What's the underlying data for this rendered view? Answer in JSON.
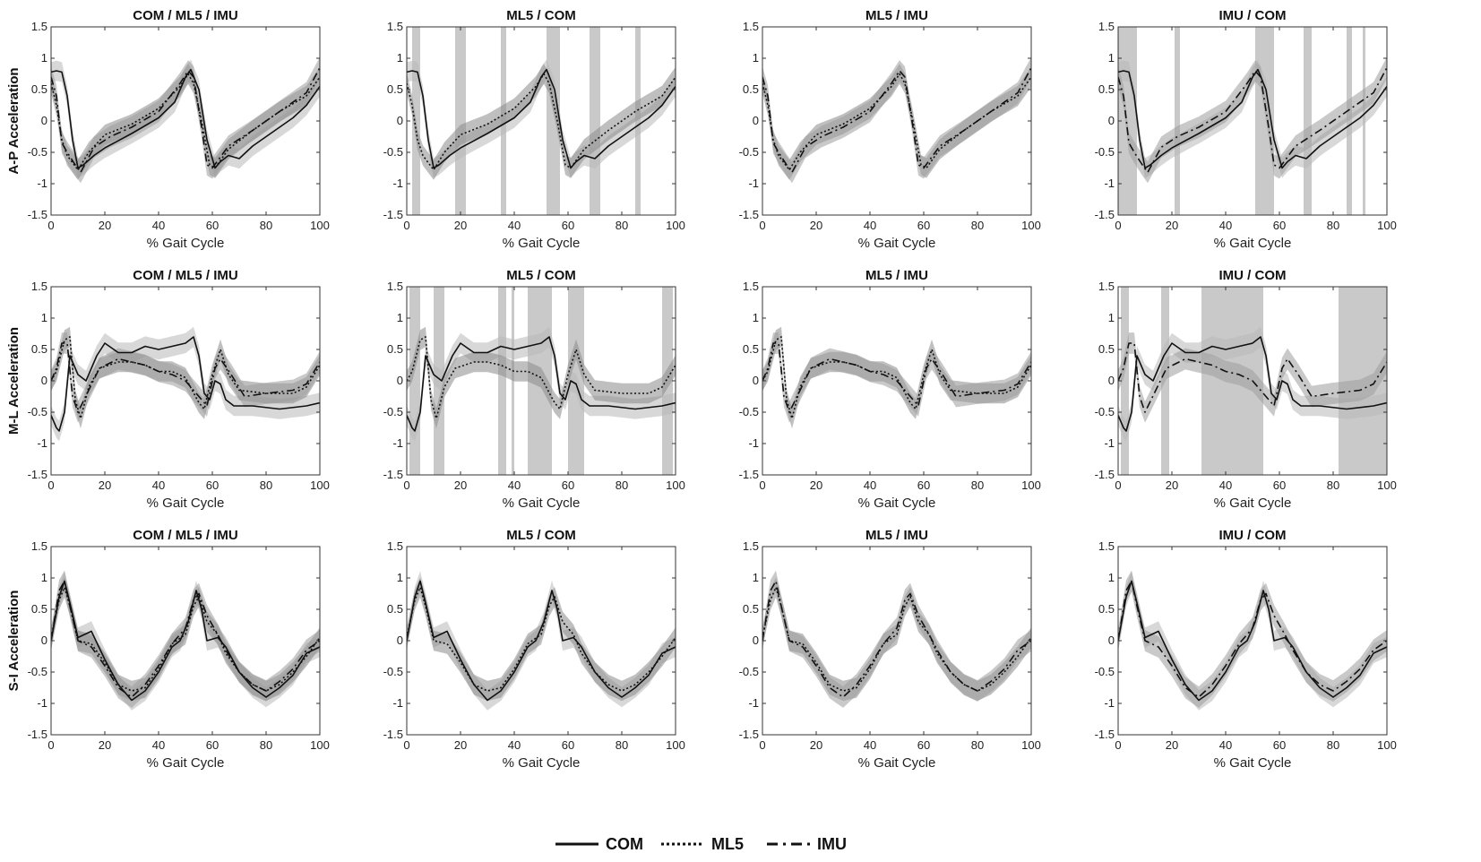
{
  "chart_data": {
    "type": "line",
    "description_grid": "3 rows x 4 columns of small multiples",
    "x_label": "% Gait Cycle",
    "xlim": [
      0,
      100
    ],
    "ylim": [
      -1.5,
      1.5
    ],
    "x_ticks": [
      "0",
      "20",
      "40",
      "60",
      "80",
      "100"
    ],
    "y_ticks": [
      "1.5",
      "1",
      "0.5",
      "0",
      "-0.5",
      "-1",
      "-1.5"
    ],
    "legend": [
      {
        "name": "COM",
        "style": "solid"
      },
      {
        "name": "ML5",
        "style": "dotted"
      },
      {
        "name": "IMU",
        "style": "dashdot"
      }
    ],
    "band_colors": {
      "COM": "#b8b8b8",
      "ML5": "#8a8a8a",
      "IMU": "#9c9c9c",
      "sig": "#c9c9c9"
    },
    "rows": [
      {
        "ylabel": "A-P Acceleration",
        "COM": [
          [
            0,
            0.78
          ],
          [
            2,
            0.8
          ],
          [
            4,
            0.78
          ],
          [
            6,
            0.4
          ],
          [
            8,
            -0.3
          ],
          [
            10,
            -0.75
          ],
          [
            12,
            -0.7
          ],
          [
            16,
            -0.55
          ],
          [
            20,
            -0.43
          ],
          [
            30,
            -0.2
          ],
          [
            40,
            0.05
          ],
          [
            46,
            0.3
          ],
          [
            50,
            0.7
          ],
          [
            52,
            0.82
          ],
          [
            55,
            0.5
          ],
          [
            58,
            -0.3
          ],
          [
            61,
            -0.75
          ],
          [
            63,
            -0.65
          ],
          [
            66,
            -0.55
          ],
          [
            70,
            -0.6
          ],
          [
            75,
            -0.4
          ],
          [
            80,
            -0.25
          ],
          [
            90,
            0.05
          ],
          [
            95,
            0.25
          ],
          [
            100,
            0.55
          ]
        ],
        "ML5": [
          [
            0,
            0.6
          ],
          [
            2,
            0.25
          ],
          [
            4,
            -0.3
          ],
          [
            6,
            -0.55
          ],
          [
            10,
            -0.78
          ],
          [
            14,
            -0.5
          ],
          [
            20,
            -0.22
          ],
          [
            30,
            -0.05
          ],
          [
            40,
            0.2
          ],
          [
            48,
            0.55
          ],
          [
            51,
            0.75
          ],
          [
            53,
            0.6
          ],
          [
            56,
            0.0
          ],
          [
            59,
            -0.7
          ],
          [
            61,
            -0.75
          ],
          [
            66,
            -0.45
          ],
          [
            75,
            -0.15
          ],
          [
            85,
            0.15
          ],
          [
            95,
            0.4
          ],
          [
            100,
            0.7
          ]
        ],
        "IMU": [
          [
            0,
            0.7
          ],
          [
            2,
            0.4
          ],
          [
            4,
            -0.35
          ],
          [
            6,
            -0.5
          ],
          [
            9,
            -0.7
          ],
          [
            11,
            -0.82
          ],
          [
            16,
            -0.42
          ],
          [
            22,
            -0.25
          ],
          [
            30,
            -0.1
          ],
          [
            40,
            0.15
          ],
          [
            48,
            0.6
          ],
          [
            51,
            0.8
          ],
          [
            53,
            0.7
          ],
          [
            56,
            -0.1
          ],
          [
            58,
            -0.7
          ],
          [
            60,
            -0.75
          ],
          [
            66,
            -0.4
          ],
          [
            75,
            -0.15
          ],
          [
            85,
            0.15
          ],
          [
            95,
            0.45
          ],
          [
            100,
            0.85
          ]
        ],
        "panels": [
          {
            "title": "COM / ML5 / IMU",
            "lines": [
              "COM",
              "ML5",
              "IMU"
            ],
            "sig": []
          },
          {
            "title": "ML5 / COM",
            "lines": [
              "COM",
              "ML5"
            ],
            "sig": [
              [
                2,
                5
              ],
              [
                18,
                22
              ],
              [
                35,
                37
              ],
              [
                52,
                57
              ],
              [
                68,
                72
              ],
              [
                85,
                87
              ]
            ]
          },
          {
            "title": "ML5 / IMU",
            "lines": [
              "ML5",
              "IMU"
            ],
            "sig": []
          },
          {
            "title": "IMU / COM",
            "lines": [
              "COM",
              "IMU"
            ],
            "sig": [
              [
                0,
                7
              ],
              [
                21,
                23
              ],
              [
                51,
                58
              ],
              [
                69,
                72
              ],
              [
                85,
                87
              ],
              [
                91,
                92
              ]
            ]
          }
        ]
      },
      {
        "ylabel": "M-L Acceleration",
        "COM": [
          [
            0,
            -0.55
          ],
          [
            2,
            -0.75
          ],
          [
            3,
            -0.8
          ],
          [
            5,
            -0.5
          ],
          [
            7,
            0.4
          ],
          [
            10,
            0.1
          ],
          [
            13,
            0.0
          ],
          [
            17,
            0.4
          ],
          [
            20,
            0.6
          ],
          [
            25,
            0.45
          ],
          [
            30,
            0.45
          ],
          [
            35,
            0.55
          ],
          [
            40,
            0.5
          ],
          [
            45,
            0.55
          ],
          [
            50,
            0.6
          ],
          [
            53,
            0.7
          ],
          [
            55,
            0.4
          ],
          [
            57,
            -0.2
          ],
          [
            59,
            -0.3
          ],
          [
            61,
            0.0
          ],
          [
            63,
            -0.05
          ],
          [
            65,
            -0.3
          ],
          [
            68,
            -0.4
          ],
          [
            75,
            -0.4
          ],
          [
            85,
            -0.45
          ],
          [
            95,
            -0.4
          ],
          [
            100,
            -0.35
          ]
        ],
        "ML5": [
          [
            0,
            0.0
          ],
          [
            2,
            0.15
          ],
          [
            5,
            0.65
          ],
          [
            7,
            0.7
          ],
          [
            9,
            -0.3
          ],
          [
            11,
            -0.6
          ],
          [
            14,
            -0.1
          ],
          [
            18,
            0.2
          ],
          [
            25,
            0.3
          ],
          [
            30,
            0.3
          ],
          [
            35,
            0.25
          ],
          [
            40,
            0.15
          ],
          [
            45,
            0.15
          ],
          [
            50,
            0.05
          ],
          [
            55,
            -0.35
          ],
          [
            57,
            -0.45
          ],
          [
            60,
            0.1
          ],
          [
            63,
            0.5
          ],
          [
            66,
            0.1
          ],
          [
            70,
            -0.15
          ],
          [
            80,
            -0.2
          ],
          [
            90,
            -0.2
          ],
          [
            95,
            -0.1
          ],
          [
            100,
            0.25
          ]
        ],
        "IMU": [
          [
            0,
            0.0
          ],
          [
            2,
            0.2
          ],
          [
            4,
            0.6
          ],
          [
            6,
            0.6
          ],
          [
            8,
            -0.25
          ],
          [
            10,
            -0.5
          ],
          [
            14,
            -0.15
          ],
          [
            18,
            0.2
          ],
          [
            25,
            0.35
          ],
          [
            30,
            0.3
          ],
          [
            35,
            0.25
          ],
          [
            40,
            0.15
          ],
          [
            45,
            0.1
          ],
          [
            50,
            0.0
          ],
          [
            55,
            -0.25
          ],
          [
            58,
            -0.4
          ],
          [
            61,
            0.2
          ],
          [
            63,
            0.35
          ],
          [
            67,
            0.1
          ],
          [
            72,
            -0.25
          ],
          [
            80,
            -0.2
          ],
          [
            90,
            -0.15
          ],
          [
            95,
            -0.05
          ],
          [
            100,
            0.3
          ]
        ],
        "panels": [
          {
            "title": "COM / ML5 / IMU",
            "lines": [
              "COM",
              "ML5",
              "IMU"
            ],
            "sig": []
          },
          {
            "title": "ML5 / COM",
            "lines": [
              "COM",
              "ML5"
            ],
            "sig": [
              [
                1,
                5
              ],
              [
                10,
                14
              ],
              [
                34,
                37
              ],
              [
                39,
                40
              ],
              [
                45,
                54
              ],
              [
                60,
                66
              ],
              [
                95,
                99
              ]
            ]
          },
          {
            "title": "ML5 / IMU",
            "lines": [
              "ML5",
              "IMU"
            ],
            "sig": []
          },
          {
            "title": "IMU / COM",
            "lines": [
              "COM",
              "IMU"
            ],
            "sig": [
              [
                1,
                4
              ],
              [
                16,
                19
              ],
              [
                31,
                54
              ],
              [
                82,
                100
              ]
            ]
          }
        ]
      },
      {
        "ylabel": "S-I Acceleration",
        "COM": [
          [
            0,
            0.0
          ],
          [
            3,
            0.7
          ],
          [
            5,
            0.95
          ],
          [
            7,
            0.6
          ],
          [
            10,
            0.05
          ],
          [
            15,
            0.15
          ],
          [
            20,
            -0.3
          ],
          [
            25,
            -0.7
          ],
          [
            30,
            -0.95
          ],
          [
            35,
            -0.8
          ],
          [
            40,
            -0.5
          ],
          [
            45,
            -0.1
          ],
          [
            48,
            0.0
          ],
          [
            51,
            0.3
          ],
          [
            54,
            0.8
          ],
          [
            56,
            0.5
          ],
          [
            58,
            0.0
          ],
          [
            62,
            0.05
          ],
          [
            65,
            -0.1
          ],
          [
            70,
            -0.5
          ],
          [
            75,
            -0.75
          ],
          [
            80,
            -0.9
          ],
          [
            85,
            -0.75
          ],
          [
            90,
            -0.55
          ],
          [
            95,
            -0.2
          ],
          [
            100,
            -0.1
          ]
        ],
        "ML5": [
          [
            0,
            0.05
          ],
          [
            3,
            0.65
          ],
          [
            5,
            0.85
          ],
          [
            7,
            0.55
          ],
          [
            10,
            0.0
          ],
          [
            15,
            -0.05
          ],
          [
            20,
            -0.35
          ],
          [
            25,
            -0.7
          ],
          [
            30,
            -0.8
          ],
          [
            35,
            -0.75
          ],
          [
            40,
            -0.45
          ],
          [
            45,
            -0.05
          ],
          [
            50,
            0.1
          ],
          [
            53,
            0.55
          ],
          [
            55,
            0.7
          ],
          [
            58,
            0.3
          ],
          [
            62,
            0.1
          ],
          [
            65,
            -0.2
          ],
          [
            70,
            -0.5
          ],
          [
            75,
            -0.7
          ],
          [
            80,
            -0.8
          ],
          [
            85,
            -0.7
          ],
          [
            90,
            -0.5
          ],
          [
            95,
            -0.25
          ],
          [
            100,
            0.05
          ]
        ],
        "IMU": [
          [
            0,
            0.0
          ],
          [
            3,
            0.8
          ],
          [
            5,
            0.95
          ],
          [
            7,
            0.55
          ],
          [
            10,
            0.0
          ],
          [
            15,
            -0.1
          ],
          [
            20,
            -0.4
          ],
          [
            25,
            -0.75
          ],
          [
            30,
            -0.9
          ],
          [
            35,
            -0.7
          ],
          [
            40,
            -0.4
          ],
          [
            45,
            -0.05
          ],
          [
            50,
            0.2
          ],
          [
            53,
            0.65
          ],
          [
            55,
            0.75
          ],
          [
            58,
            0.4
          ],
          [
            62,
            0.1
          ],
          [
            65,
            -0.15
          ],
          [
            70,
            -0.5
          ],
          [
            75,
            -0.7
          ],
          [
            80,
            -0.8
          ],
          [
            85,
            -0.65
          ],
          [
            90,
            -0.45
          ],
          [
            95,
            -0.15
          ],
          [
            100,
            0.0
          ]
        ],
        "panels": [
          {
            "title": "COM / ML5 / IMU",
            "lines": [
              "COM",
              "ML5",
              "IMU"
            ],
            "sig": []
          },
          {
            "title": "ML5 / COM",
            "lines": [
              "COM",
              "ML5"
            ],
            "sig": []
          },
          {
            "title": "ML5 / IMU",
            "lines": [
              "ML5",
              "IMU"
            ],
            "sig": []
          },
          {
            "title": "IMU / COM",
            "lines": [
              "COM",
              "IMU"
            ],
            "sig": []
          }
        ]
      }
    ]
  }
}
